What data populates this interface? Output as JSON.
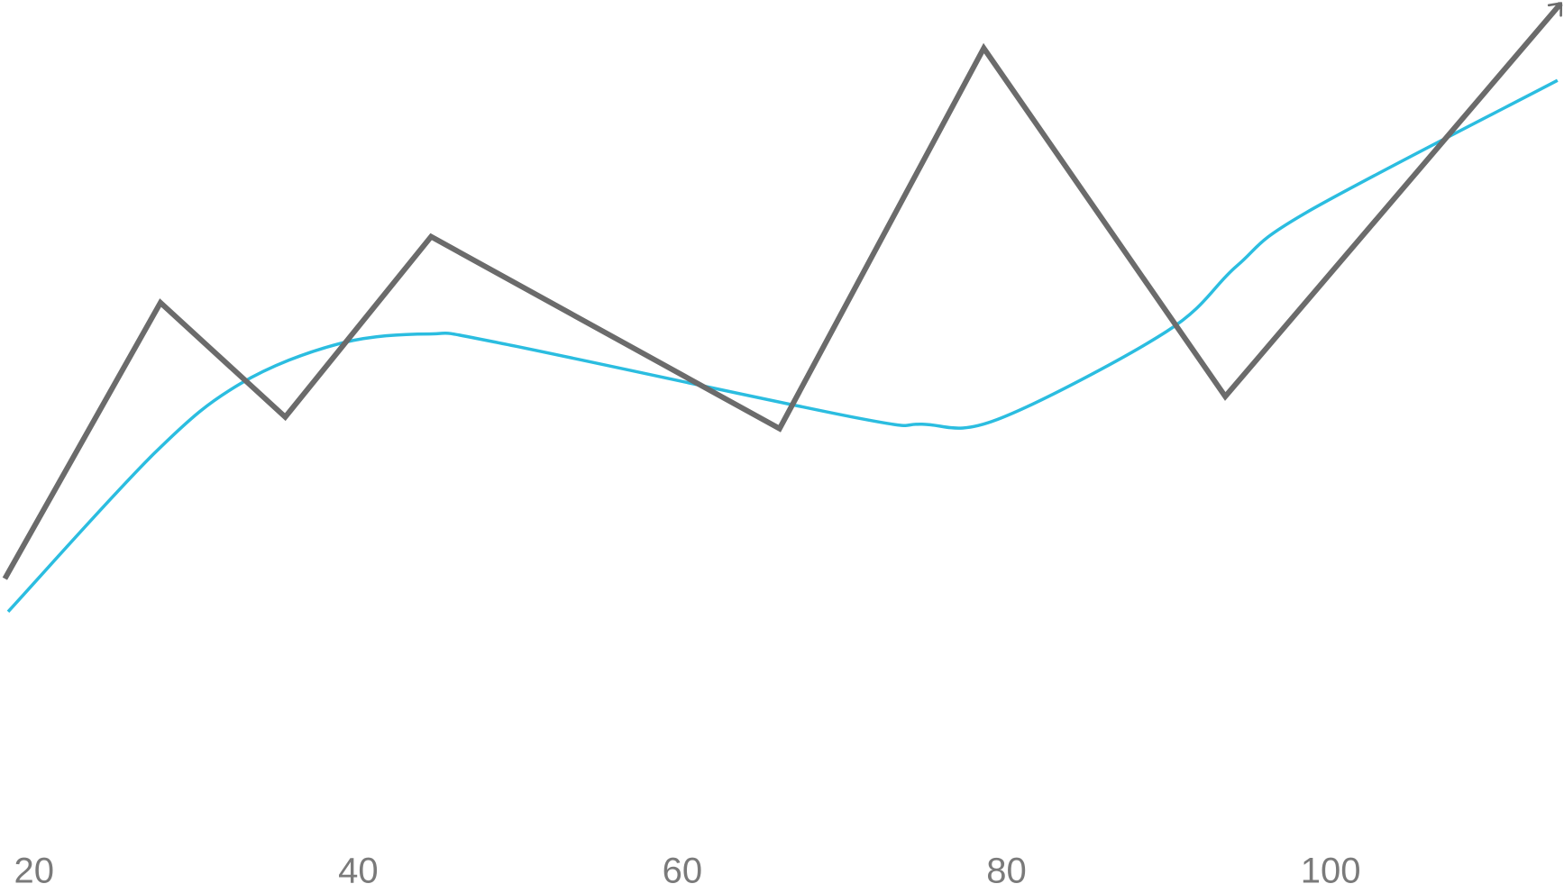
{
  "chart_data": {
    "type": "line",
    "xlim": [
      17.9,
      114.4
    ],
    "xticks": [
      20,
      40,
      60,
      80,
      100
    ],
    "ylim": [
      0,
      100
    ],
    "grid": false,
    "series": [
      {
        "color": "#6b6b6b",
        "smooth": false,
        "arrow": true,
        "x": [
          18.2,
          27.8,
          35.5,
          44.5,
          66.0,
          78.6,
          93.5,
          114.2
        ],
        "values": [
          35.2,
          66.1,
          53.3,
          73.5,
          52.0,
          94.6,
          55.6,
          99.6
        ]
      },
      {
        "color": "#2bbde0",
        "smooth": true,
        "arrow": false,
        "x": [
          18.4,
          27.4,
          32.7,
          38.8,
          44.4,
          48.7,
          70.5,
          74.8,
          79.4,
          89.9,
          94.2,
          98.5,
          114.0
        ],
        "values": [
          31.5,
          49.2,
          57.0,
          61.5,
          62.6,
          61.6,
          53.3,
          52.5,
          53.0,
          62.9,
          70.2,
          76.2,
          91.0
        ]
      }
    ]
  }
}
